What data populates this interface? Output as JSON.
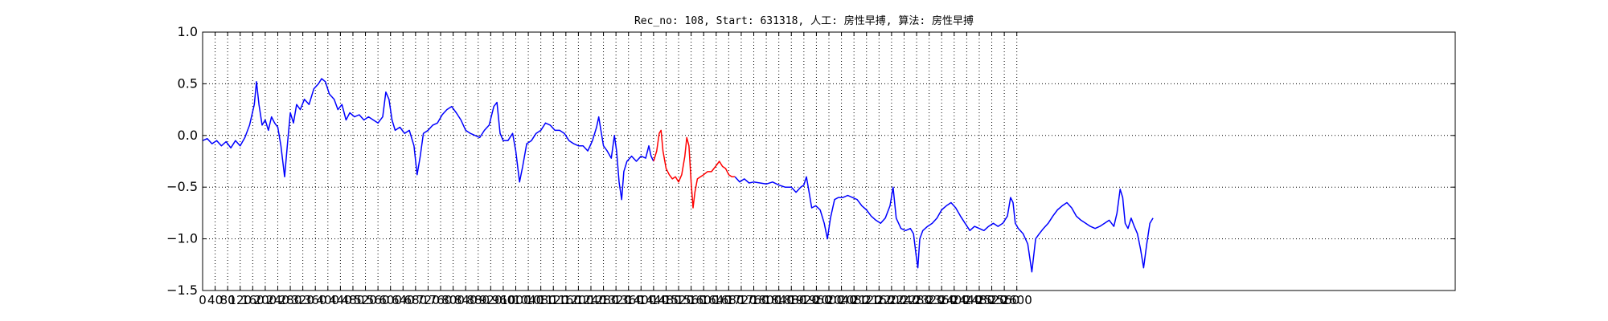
{
  "chart_data": {
    "type": "line",
    "title": "Rec_no: 108, Start: 631318, 人工: 房性早搏, 算法: 房性早搏",
    "xlabel": "",
    "ylabel": "",
    "xlim": [
      0,
      4000
    ],
    "ylim": [
      -1.5,
      1.0
    ],
    "yticks": [
      1.0,
      0.5,
      0.0,
      -0.5,
      -1.0,
      -1.5
    ],
    "ytick_labels": [
      "1.0",
      "0.5",
      "0.0",
      "−0.5",
      "−1.0",
      "−1.5"
    ],
    "xticks": [
      0,
      40,
      80,
      120,
      160,
      200,
      240,
      280,
      320,
      360,
      400,
      440,
      480,
      520,
      560,
      600,
      640,
      680,
      720,
      760,
      800,
      840,
      880,
      920,
      960,
      1000,
      1040,
      1080,
      1120,
      1160,
      1200,
      1240,
      1280,
      1320,
      1360,
      1400,
      1440,
      1480,
      1520,
      1560,
      1600,
      1640,
      1680,
      1720,
      1760,
      1800,
      1840,
      1880,
      1920,
      1960,
      2000,
      2040,
      2080,
      2120,
      2160,
      2200,
      2240,
      2280,
      2320,
      2360,
      2400,
      2440,
      2480,
      2520,
      2560,
      2600
    ],
    "xtick_labels": [
      "0",
      "40",
      "80",
      "120",
      "160",
      "200",
      "240",
      "280",
      "320",
      "360",
      "400",
      "440",
      "480",
      "520",
      "560",
      "600",
      "640",
      "680",
      "720",
      "760",
      "800",
      "840",
      "880",
      "920",
      "960",
      "1000",
      "1040",
      "1080",
      "1120",
      "1160",
      "1200",
      "1240",
      "1280",
      "1320",
      "1360",
      "1400",
      "1440",
      "1480",
      "1520",
      "1560",
      "1600",
      "1640",
      "1680",
      "1720",
      "1760",
      "1800",
      "1840",
      "1880",
      "1920",
      "1960",
      "2000",
      "2040",
      "2080",
      "2120",
      "2160",
      "2200",
      "2240",
      "2280",
      "2320",
      "2360",
      "2400",
      "2440",
      "2480",
      "2520",
      "2560",
      "2600"
    ],
    "grid": true,
    "grid_style": "dotted",
    "series": [
      {
        "color": "#0000ff",
        "points": [
          [
            0,
            -0.05
          ],
          [
            15,
            -0.03
          ],
          [
            30,
            -0.08
          ],
          [
            45,
            -0.05
          ],
          [
            60,
            -0.1
          ],
          [
            75,
            -0.06
          ],
          [
            90,
            -0.12
          ],
          [
            105,
            -0.05
          ],
          [
            120,
            -0.1
          ],
          [
            135,
            -0.02
          ],
          [
            150,
            0.1
          ],
          [
            165,
            0.3
          ],
          [
            172,
            0.52
          ],
          [
            180,
            0.3
          ],
          [
            190,
            0.1
          ],
          [
            200,
            0.15
          ],
          [
            210,
            0.05
          ],
          [
            220,
            0.18
          ],
          [
            230,
            0.12
          ],
          [
            240,
            0.08
          ],
          [
            250,
            -0.1
          ],
          [
            262,
            -0.4
          ],
          [
            272,
            -0.05
          ],
          [
            280,
            0.22
          ],
          [
            290,
            0.12
          ],
          [
            300,
            0.3
          ],
          [
            312,
            0.25
          ],
          [
            325,
            0.35
          ],
          [
            340,
            0.3
          ],
          [
            355,
            0.45
          ],
          [
            370,
            0.5
          ],
          [
            380,
            0.55
          ],
          [
            392,
            0.52
          ],
          [
            405,
            0.4
          ],
          [
            420,
            0.35
          ],
          [
            432,
            0.25
          ],
          [
            445,
            0.3
          ],
          [
            458,
            0.15
          ],
          [
            470,
            0.22
          ],
          [
            485,
            0.18
          ],
          [
            500,
            0.2
          ],
          [
            515,
            0.15
          ],
          [
            530,
            0.18
          ],
          [
            545,
            0.15
          ],
          [
            560,
            0.12
          ],
          [
            575,
            0.18
          ],
          [
            585,
            0.42
          ],
          [
            595,
            0.35
          ],
          [
            605,
            0.15
          ],
          [
            615,
            0.05
          ],
          [
            630,
            0.08
          ],
          [
            645,
            0.02
          ],
          [
            660,
            0.05
          ],
          [
            675,
            -0.1
          ],
          [
            685,
            -0.38
          ],
          [
            695,
            -0.2
          ],
          [
            705,
            0.02
          ],
          [
            720,
            0.05
          ],
          [
            735,
            0.1
          ],
          [
            750,
            0.12
          ],
          [
            765,
            0.2
          ],
          [
            780,
            0.25
          ],
          [
            795,
            0.28
          ],
          [
            810,
            0.22
          ],
          [
            825,
            0.15
          ],
          [
            840,
            0.05
          ],
          [
            855,
            0.02
          ],
          [
            870,
            0.0
          ],
          [
            885,
            -0.02
          ],
          [
            900,
            0.05
          ],
          [
            915,
            0.1
          ],
          [
            930,
            0.28
          ],
          [
            940,
            0.32
          ],
          [
            950,
            0.02
          ],
          [
            960,
            -0.05
          ],
          [
            975,
            -0.05
          ],
          [
            990,
            0.02
          ],
          [
            1000,
            -0.15
          ],
          [
            1012,
            -0.45
          ],
          [
            1022,
            -0.3
          ],
          [
            1035,
            -0.08
          ],
          [
            1050,
            -0.05
          ],
          [
            1065,
            0.02
          ],
          [
            1080,
            0.05
          ],
          [
            1095,
            0.12
          ],
          [
            1110,
            0.1
          ],
          [
            1125,
            0.05
          ],
          [
            1140,
            0.05
          ],
          [
            1155,
            0.02
          ],
          [
            1170,
            -0.05
          ],
          [
            1185,
            -0.08
          ],
          [
            1200,
            -0.1
          ],
          [
            1215,
            -0.1
          ],
          [
            1230,
            -0.15
          ],
          [
            1245,
            -0.05
          ],
          [
            1258,
            0.08
          ],
          [
            1265,
            0.18
          ],
          [
            1272,
            0.05
          ],
          [
            1280,
            -0.1
          ],
          [
            1292,
            -0.15
          ],
          [
            1305,
            -0.22
          ],
          [
            1315,
            0.0
          ],
          [
            1322,
            -0.15
          ],
          [
            1330,
            -0.45
          ],
          [
            1338,
            -0.62
          ],
          [
            1345,
            -0.35
          ],
          [
            1355,
            -0.25
          ],
          [
            1370,
            -0.2
          ],
          [
            1385,
            -0.25
          ],
          [
            1400,
            -0.2
          ],
          [
            1415,
            -0.22
          ],
          [
            1425,
            -0.1
          ],
          [
            1432,
            -0.2
          ],
          [
            1440,
            -0.25
          ]
        ]
      },
      {
        "color": "#ff0000",
        "points": [
          [
            1440,
            -0.25
          ],
          [
            1450,
            -0.15
          ],
          [
            1458,
            0.02
          ],
          [
            1464,
            0.05
          ],
          [
            1470,
            -0.15
          ],
          [
            1480,
            -0.32
          ],
          [
            1490,
            -0.38
          ],
          [
            1500,
            -0.42
          ],
          [
            1510,
            -0.4
          ],
          [
            1520,
            -0.45
          ],
          [
            1530,
            -0.38
          ],
          [
            1540,
            -0.2
          ],
          [
            1546,
            -0.02
          ],
          [
            1553,
            -0.1
          ],
          [
            1560,
            -0.45
          ],
          [
            1566,
            -0.7
          ],
          [
            1572,
            -0.55
          ],
          [
            1580,
            -0.42
          ],
          [
            1590,
            -0.4
          ],
          [
            1600,
            -0.38
          ],
          [
            1612,
            -0.35
          ],
          [
            1625,
            -0.35
          ],
          [
            1638,
            -0.3
          ],
          [
            1650,
            -0.25
          ],
          [
            1660,
            -0.3
          ],
          [
            1670,
            -0.32
          ],
          [
            1680,
            -0.38
          ],
          [
            1690,
            -0.4
          ],
          [
            1700,
            -0.4
          ]
        ]
      },
      {
        "color": "#0000ff",
        "points": [
          [
            1700,
            -0.4
          ],
          [
            1715,
            -0.45
          ],
          [
            1730,
            -0.42
          ],
          [
            1745,
            -0.46
          ],
          [
            1760,
            -0.45
          ],
          [
            1780,
            -0.46
          ],
          [
            1800,
            -0.47
          ],
          [
            1820,
            -0.45
          ],
          [
            1840,
            -0.48
          ],
          [
            1860,
            -0.5
          ],
          [
            1880,
            -0.5
          ],
          [
            1895,
            -0.55
          ],
          [
            1910,
            -0.5
          ],
          [
            1920,
            -0.48
          ],
          [
            1928,
            -0.4
          ],
          [
            1935,
            -0.52
          ],
          [
            1945,
            -0.7
          ],
          [
            1958,
            -0.68
          ],
          [
            1972,
            -0.72
          ],
          [
            1985,
            -0.85
          ],
          [
            1995,
            -1.0
          ],
          [
            2005,
            -0.8
          ],
          [
            2018,
            -0.62
          ],
          [
            2030,
            -0.6
          ],
          [
            2045,
            -0.6
          ],
          [
            2060,
            -0.58
          ],
          [
            2075,
            -0.6
          ],
          [
            2090,
            -0.62
          ],
          [
            2105,
            -0.68
          ],
          [
            2120,
            -0.72
          ],
          [
            2135,
            -0.78
          ],
          [
            2150,
            -0.82
          ],
          [
            2165,
            -0.85
          ],
          [
            2180,
            -0.8
          ],
          [
            2195,
            -0.68
          ],
          [
            2205,
            -0.5
          ],
          [
            2215,
            -0.8
          ],
          [
            2230,
            -0.9
          ],
          [
            2245,
            -0.92
          ],
          [
            2260,
            -0.9
          ],
          [
            2270,
            -0.95
          ],
          [
            2278,
            -1.15
          ],
          [
            2284,
            -1.28
          ],
          [
            2290,
            -1.0
          ],
          [
            2300,
            -0.92
          ],
          [
            2315,
            -0.88
          ],
          [
            2330,
            -0.85
          ],
          [
            2345,
            -0.8
          ],
          [
            2360,
            -0.72
          ],
          [
            2375,
            -0.68
          ],
          [
            2390,
            -0.65
          ],
          [
            2405,
            -0.7
          ],
          [
            2420,
            -0.78
          ],
          [
            2435,
            -0.85
          ],
          [
            2450,
            -0.92
          ],
          [
            2465,
            -0.88
          ],
          [
            2480,
            -0.9
          ],
          [
            2495,
            -0.92
          ],
          [
            2510,
            -0.88
          ],
          [
            2525,
            -0.85
          ],
          [
            2540,
            -0.88
          ],
          [
            2555,
            -0.85
          ],
          [
            2570,
            -0.78
          ],
          [
            2580,
            -0.6
          ],
          [
            2588,
            -0.65
          ],
          [
            2595,
            -0.85
          ],
          [
            2605,
            -0.9
          ],
          [
            2620,
            -0.95
          ],
          [
            2635,
            -1.05
          ],
          [
            2648,
            -1.32
          ],
          [
            2660,
            -1.0
          ],
          [
            2672,
            -0.95
          ],
          [
            2685,
            -0.9
          ],
          [
            2700,
            -0.85
          ],
          [
            2715,
            -0.78
          ],
          [
            2730,
            -0.72
          ],
          [
            2745,
            -0.68
          ],
          [
            2760,
            -0.65
          ],
          [
            2775,
            -0.7
          ],
          [
            2790,
            -0.78
          ],
          [
            2805,
            -0.82
          ],
          [
            2820,
            -0.85
          ],
          [
            2835,
            -0.88
          ],
          [
            2850,
            -0.9
          ],
          [
            2865,
            -0.88
          ],
          [
            2880,
            -0.85
          ],
          [
            2895,
            -0.82
          ],
          [
            2910,
            -0.88
          ],
          [
            2920,
            -0.75
          ],
          [
            2930,
            -0.52
          ],
          [
            2938,
            -0.6
          ],
          [
            2946,
            -0.85
          ],
          [
            2955,
            -0.9
          ],
          [
            2965,
            -0.8
          ],
          [
            2975,
            -0.88
          ],
          [
            2985,
            -0.95
          ],
          [
            2995,
            -1.1
          ],
          [
            3005,
            -1.28
          ],
          [
            3015,
            -1.05
          ],
          [
            3025,
            -0.85
          ],
          [
            3035,
            -0.8
          ]
        ]
      }
    ]
  }
}
